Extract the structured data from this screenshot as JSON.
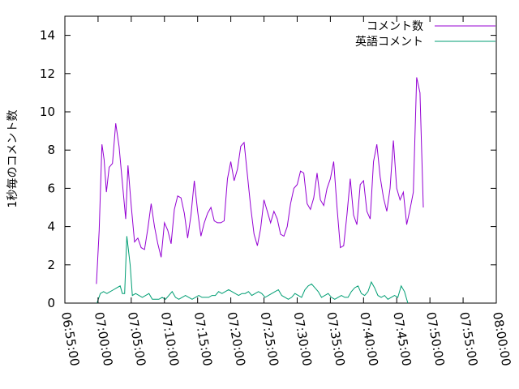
{
  "chart_data": {
    "type": "line",
    "xlabel": "",
    "ylabel": "1秒毎のコメント数",
    "ylim": [
      0,
      15
    ],
    "yticks": [
      0,
      2,
      4,
      6,
      8,
      10,
      12,
      14
    ],
    "x_range": [
      "06:55:00",
      "08:00:00"
    ],
    "xtick_labels": [
      "06:55:00",
      "07:00:00",
      "07:05:00",
      "07:10:00",
      "07:15:00",
      "07:20:00",
      "07:25:00",
      "07:30:00",
      "07:35:00",
      "07:40:00",
      "07:45:00",
      "07:50:00",
      "07:55:00",
      "08:00:00"
    ],
    "legend_position": "top-right",
    "grid": false,
    "series": [
      {
        "name": "コメント数",
        "color": "#9400d3",
        "points": [
          [
            "06:59:45",
            1.0
          ],
          [
            "07:00:10",
            3.8
          ],
          [
            "07:00:35",
            8.3
          ],
          [
            "07:00:55",
            7.5
          ],
          [
            "07:01:15",
            5.8
          ],
          [
            "07:01:40",
            7.1
          ],
          [
            "07:02:10",
            7.3
          ],
          [
            "07:02:40",
            9.4
          ],
          [
            "07:03:10",
            8.2
          ],
          [
            "07:03:40",
            6.3
          ],
          [
            "07:04:10",
            4.4
          ],
          [
            "07:04:30",
            7.2
          ],
          [
            "07:05:00",
            5.1
          ],
          [
            "07:05:30",
            3.2
          ],
          [
            "07:06:00",
            3.4
          ],
          [
            "07:06:30",
            2.9
          ],
          [
            "07:07:00",
            2.8
          ],
          [
            "07:07:30",
            3.9
          ],
          [
            "07:08:00",
            5.2
          ],
          [
            "07:08:30",
            4.0
          ],
          [
            "07:09:00",
            3.1
          ],
          [
            "07:09:30",
            2.4
          ],
          [
            "07:10:00",
            4.2
          ],
          [
            "07:10:30",
            3.8
          ],
          [
            "07:11:00",
            3.1
          ],
          [
            "07:11:30",
            4.9
          ],
          [
            "07:12:00",
            5.6
          ],
          [
            "07:12:30",
            5.5
          ],
          [
            "07:13:00",
            4.7
          ],
          [
            "07:13:30",
            3.4
          ],
          [
            "07:14:00",
            4.6
          ],
          [
            "07:14:30",
            6.4
          ],
          [
            "07:15:00",
            4.8
          ],
          [
            "07:15:30",
            3.5
          ],
          [
            "07:16:00",
            4.2
          ],
          [
            "07:16:30",
            4.7
          ],
          [
            "07:17:00",
            5.0
          ],
          [
            "07:17:30",
            4.3
          ],
          [
            "07:18:00",
            4.2
          ],
          [
            "07:18:30",
            4.2
          ],
          [
            "07:19:00",
            4.3
          ],
          [
            "07:19:30",
            6.5
          ],
          [
            "07:20:00",
            7.4
          ],
          [
            "07:20:30",
            6.4
          ],
          [
            "07:21:00",
            7.0
          ],
          [
            "07:21:30",
            8.2
          ],
          [
            "07:22:00",
            8.4
          ],
          [
            "07:22:30",
            6.7
          ],
          [
            "07:23:00",
            5.0
          ],
          [
            "07:23:30",
            3.6
          ],
          [
            "07:24:00",
            3.0
          ],
          [
            "07:24:30",
            3.9
          ],
          [
            "07:25:00",
            5.4
          ],
          [
            "07:25:30",
            4.8
          ],
          [
            "07:26:00",
            4.2
          ],
          [
            "07:26:30",
            4.8
          ],
          [
            "07:27:00",
            4.4
          ],
          [
            "07:27:30",
            3.6
          ],
          [
            "07:28:00",
            3.5
          ],
          [
            "07:28:30",
            4.0
          ],
          [
            "07:29:00",
            5.2
          ],
          [
            "07:29:30",
            6.0
          ],
          [
            "07:30:00",
            6.2
          ],
          [
            "07:30:30",
            6.9
          ],
          [
            "07:31:00",
            6.8
          ],
          [
            "07:31:30",
            5.2
          ],
          [
            "07:32:00",
            4.9
          ],
          [
            "07:32:30",
            5.5
          ],
          [
            "07:33:00",
            6.8
          ],
          [
            "07:33:30",
            5.4
          ],
          [
            "07:34:00",
            5.1
          ],
          [
            "07:34:30",
            6.0
          ],
          [
            "07:35:00",
            6.5
          ],
          [
            "07:35:30",
            7.4
          ],
          [
            "07:36:00",
            5.0
          ],
          [
            "07:36:30",
            2.9
          ],
          [
            "07:37:00",
            3.0
          ],
          [
            "07:37:30",
            4.6
          ],
          [
            "07:38:00",
            6.5
          ],
          [
            "07:38:30",
            4.6
          ],
          [
            "07:39:00",
            4.1
          ],
          [
            "07:39:30",
            6.2
          ],
          [
            "07:40:00",
            6.4
          ],
          [
            "07:40:30",
            4.8
          ],
          [
            "07:41:00",
            4.4
          ],
          [
            "07:41:30",
            7.4
          ],
          [
            "07:42:00",
            8.3
          ],
          [
            "07:42:30",
            6.6
          ],
          [
            "07:43:00",
            5.5
          ],
          [
            "07:43:30",
            4.8
          ],
          [
            "07:44:00",
            6.0
          ],
          [
            "07:44:30",
            8.5
          ],
          [
            "07:45:00",
            6.0
          ],
          [
            "07:45:30",
            5.4
          ],
          [
            "07:46:00",
            5.8
          ],
          [
            "07:46:30",
            4.1
          ],
          [
            "07:47:00",
            4.9
          ],
          [
            "07:47:30",
            5.8
          ],
          [
            "07:48:00",
            11.8
          ],
          [
            "07:48:30",
            11.0
          ],
          [
            "07:49:00",
            5.0
          ]
        ]
      },
      {
        "name": "英語コメント",
        "color": "#009e73",
        "points": [
          [
            "06:59:50",
            0.0
          ],
          [
            "07:00:20",
            0.5
          ],
          [
            "07:00:50",
            0.6
          ],
          [
            "07:01:20",
            0.5
          ],
          [
            "07:01:50",
            0.6
          ],
          [
            "07:02:20",
            0.7
          ],
          [
            "07:02:50",
            0.8
          ],
          [
            "07:03:20",
            0.9
          ],
          [
            "07:03:40",
            0.5
          ],
          [
            "07:04:00",
            0.5
          ],
          [
            "07:04:20",
            3.5
          ],
          [
            "07:04:50",
            2.0
          ],
          [
            "07:05:10",
            0.4
          ],
          [
            "07:05:40",
            0.5
          ],
          [
            "07:06:10",
            0.4
          ],
          [
            "07:06:40",
            0.3
          ],
          [
            "07:07:10",
            0.4
          ],
          [
            "07:07:40",
            0.5
          ],
          [
            "07:08:10",
            0.2
          ],
          [
            "07:08:40",
            0.2
          ],
          [
            "07:09:10",
            0.2
          ],
          [
            "07:09:40",
            0.3
          ],
          [
            "07:10:10",
            0.2
          ],
          [
            "07:10:40",
            0.4
          ],
          [
            "07:11:10",
            0.6
          ],
          [
            "07:11:40",
            0.3
          ],
          [
            "07:12:10",
            0.2
          ],
          [
            "07:12:40",
            0.3
          ],
          [
            "07:13:10",
            0.4
          ],
          [
            "07:13:40",
            0.3
          ],
          [
            "07:14:10",
            0.2
          ],
          [
            "07:14:40",
            0.3
          ],
          [
            "07:15:10",
            0.4
          ],
          [
            "07:15:40",
            0.3
          ],
          [
            "07:16:10",
            0.3
          ],
          [
            "07:16:40",
            0.3
          ],
          [
            "07:17:10",
            0.4
          ],
          [
            "07:17:40",
            0.4
          ],
          [
            "07:18:10",
            0.6
          ],
          [
            "07:18:40",
            0.5
          ],
          [
            "07:19:10",
            0.6
          ],
          [
            "07:19:40",
            0.7
          ],
          [
            "07:20:10",
            0.6
          ],
          [
            "07:20:40",
            0.5
          ],
          [
            "07:21:10",
            0.4
          ],
          [
            "07:21:40",
            0.5
          ],
          [
            "07:22:10",
            0.5
          ],
          [
            "07:22:40",
            0.6
          ],
          [
            "07:23:10",
            0.4
          ],
          [
            "07:23:40",
            0.5
          ],
          [
            "07:24:10",
            0.6
          ],
          [
            "07:24:40",
            0.5
          ],
          [
            "07:25:10",
            0.3
          ],
          [
            "07:25:40",
            0.4
          ],
          [
            "07:26:10",
            0.5
          ],
          [
            "07:26:40",
            0.6
          ],
          [
            "07:27:10",
            0.7
          ],
          [
            "07:27:40",
            0.4
          ],
          [
            "07:28:10",
            0.3
          ],
          [
            "07:28:40",
            0.2
          ],
          [
            "07:29:10",
            0.3
          ],
          [
            "07:29:40",
            0.5
          ],
          [
            "07:30:10",
            0.4
          ],
          [
            "07:30:40",
            0.3
          ],
          [
            "07:31:10",
            0.7
          ],
          [
            "07:31:40",
            0.9
          ],
          [
            "07:32:10",
            1.0
          ],
          [
            "07:32:40",
            0.8
          ],
          [
            "07:33:10",
            0.6
          ],
          [
            "07:33:40",
            0.3
          ],
          [
            "07:34:10",
            0.4
          ],
          [
            "07:34:40",
            0.5
          ],
          [
            "07:35:10",
            0.3
          ],
          [
            "07:35:40",
            0.2
          ],
          [
            "07:36:10",
            0.3
          ],
          [
            "07:36:40",
            0.4
          ],
          [
            "07:37:10",
            0.3
          ],
          [
            "07:37:40",
            0.3
          ],
          [
            "07:38:10",
            0.6
          ],
          [
            "07:38:40",
            0.8
          ],
          [
            "07:39:10",
            0.9
          ],
          [
            "07:39:40",
            0.5
          ],
          [
            "07:40:10",
            0.4
          ],
          [
            "07:40:40",
            0.6
          ],
          [
            "07:41:10",
            1.1
          ],
          [
            "07:41:40",
            0.8
          ],
          [
            "07:42:10",
            0.4
          ],
          [
            "07:42:40",
            0.3
          ],
          [
            "07:43:10",
            0.4
          ],
          [
            "07:43:40",
            0.2
          ],
          [
            "07:44:10",
            0.3
          ],
          [
            "07:44:40",
            0.4
          ],
          [
            "07:45:10",
            0.3
          ],
          [
            "07:45:40",
            0.9
          ],
          [
            "07:46:10",
            0.6
          ],
          [
            "07:46:40",
            0.0
          ]
        ]
      }
    ]
  }
}
